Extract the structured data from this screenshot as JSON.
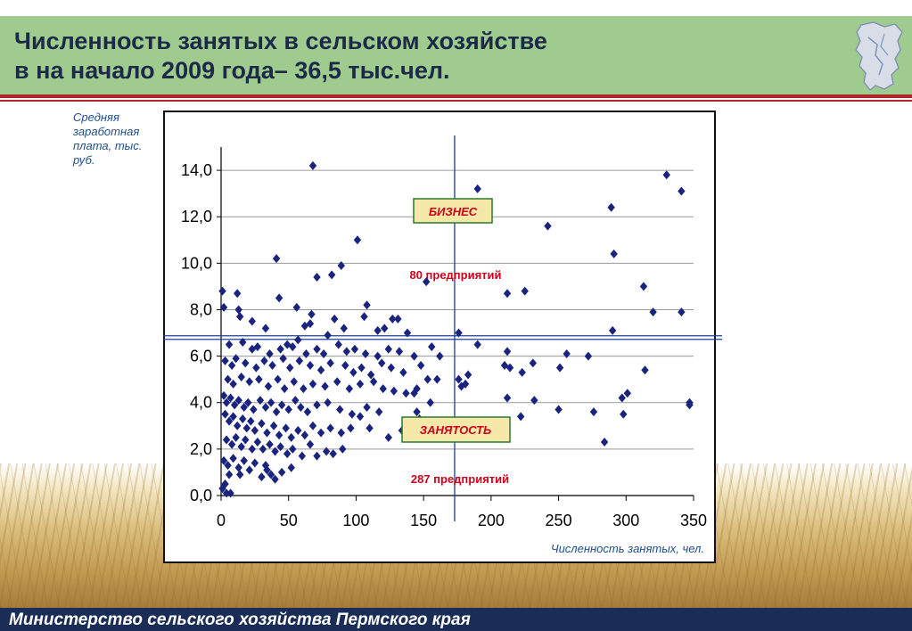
{
  "header": {
    "title_line1": "Численность занятых в сельском хозяйстве",
    "title_line2": "в на начало 2009 года– 36,5 тыс.чел."
  },
  "footer": {
    "text": "Министерство сельского хозяйства Пермского края"
  },
  "colors": {
    "header_bg": "#9fcc8e",
    "accent_line": "#b0262b",
    "footer_bg": "#1b2d56",
    "marker": "#1a237e",
    "annotation_red": "#d0021b",
    "quadrant_box": "#f5e8a8"
  },
  "icons": {
    "region_map": "perm-krai-map-icon"
  },
  "chart_data": {
    "type": "scatter",
    "title": "",
    "ylabel": "Средняя заработная плата, тыс. руб.",
    "xlabel": "Численность занятых, чел.",
    "xlim": [
      0,
      350
    ],
    "ylim": [
      0,
      15
    ],
    "xticks": [
      "0",
      "50",
      "100",
      "150",
      "200",
      "250",
      "300",
      "350"
    ],
    "yticks": [
      "0,0",
      "2,0",
      "4,0",
      "6,0",
      "8,0",
      "10,0",
      "12,0",
      "14,0"
    ],
    "ytick_values": [
      0,
      2,
      4,
      6,
      8,
      10,
      12,
      14
    ],
    "grid": "horizontal",
    "reference_lines": {
      "x": 173,
      "y": 6.8
    },
    "annotations": {
      "business_label": "БИЗНЕС",
      "business_count": "80 предприятий",
      "employment_label": "ЗАНЯТОСТЬ",
      "employment_count": "287 предприятий"
    },
    "points": [
      [
        68,
        14.2
      ],
      [
        190,
        13.2
      ],
      [
        330,
        13.8
      ],
      [
        341,
        13.1
      ],
      [
        289,
        12.4
      ],
      [
        242,
        11.6
      ],
      [
        101,
        11.0
      ],
      [
        41,
        10.2
      ],
      [
        291,
        10.4
      ],
      [
        89,
        9.9
      ],
      [
        82,
        9.5
      ],
      [
        71,
        9.4
      ],
      [
        152,
        9.2
      ],
      [
        1,
        8.8
      ],
      [
        12,
        8.7
      ],
      [
        43,
        8.5
      ],
      [
        108,
        8.2
      ],
      [
        212,
        8.7
      ],
      [
        225,
        8.8
      ],
      [
        313,
        9.0
      ],
      [
        2,
        8.1
      ],
      [
        13,
        8.0
      ],
      [
        14,
        7.7
      ],
      [
        56,
        8.1
      ],
      [
        67,
        7.8
      ],
      [
        84,
        7.6
      ],
      [
        106,
        7.7
      ],
      [
        127,
        7.6
      ],
      [
        131,
        7.6
      ],
      [
        23,
        7.5
      ],
      [
        62,
        7.3
      ],
      [
        66,
        7.4
      ],
      [
        91,
        7.2
      ],
      [
        33,
        7.2
      ],
      [
        320,
        7.9
      ],
      [
        341,
        7.9
      ],
      [
        290,
        7.1
      ],
      [
        176,
        7.0
      ],
      [
        138,
        7.0
      ],
      [
        121,
        7.2
      ],
      [
        116,
        7.1
      ],
      [
        79,
        6.9
      ],
      [
        57,
        6.7
      ],
      [
        6,
        6.5
      ],
      [
        16,
        6.6
      ],
      [
        23,
        6.3
      ],
      [
        27,
        6.4
      ],
      [
        36,
        6.1
      ],
      [
        44,
        6.3
      ],
      [
        49,
        6.5
      ],
      [
        53,
        6.4
      ],
      [
        63,
        6.1
      ],
      [
        71,
        6.3
      ],
      [
        76,
        6.1
      ],
      [
        87,
        6.5
      ],
      [
        93,
        6.2
      ],
      [
        99,
        6.3
      ],
      [
        107,
        6.1
      ],
      [
        116,
        6.0
      ],
      [
        124,
        6.3
      ],
      [
        132,
        6.2
      ],
      [
        143,
        6.0
      ],
      [
        156,
        6.4
      ],
      [
        162,
        6.0
      ],
      [
        190,
        6.5
      ],
      [
        212,
        6.2
      ],
      [
        256,
        6.1
      ],
      [
        272,
        6.0
      ],
      [
        3,
        5.8
      ],
      [
        8,
        5.6
      ],
      [
        11,
        5.9
      ],
      [
        18,
        5.7
      ],
      [
        26,
        5.5
      ],
      [
        32,
        5.8
      ],
      [
        38,
        5.6
      ],
      [
        46,
        5.9
      ],
      [
        51,
        5.5
      ],
      [
        58,
        5.8
      ],
      [
        66,
        5.6
      ],
      [
        74,
        5.4
      ],
      [
        81,
        5.7
      ],
      [
        92,
        5.6
      ],
      [
        98,
        5.3
      ],
      [
        104,
        5.5
      ],
      [
        111,
        5.2
      ],
      [
        119,
        5.7
      ],
      [
        126,
        5.5
      ],
      [
        135,
        5.3
      ],
      [
        148,
        5.6
      ],
      [
        210,
        5.6
      ],
      [
        214,
        5.5
      ],
      [
        223,
        5.3
      ],
      [
        231,
        5.7
      ],
      [
        251,
        5.5
      ],
      [
        314,
        5.4
      ],
      [
        153,
        5.0
      ],
      [
        160,
        5.0
      ],
      [
        176,
        5.0
      ],
      [
        181,
        4.8
      ],
      [
        183,
        5.2
      ],
      [
        5,
        5.0
      ],
      [
        9,
        4.8
      ],
      [
        15,
        5.1
      ],
      [
        21,
        4.9
      ],
      [
        28,
        5.0
      ],
      [
        35,
        4.7
      ],
      [
        42,
        5.0
      ],
      [
        47,
        4.6
      ],
      [
        54,
        4.9
      ],
      [
        61,
        4.6
      ],
      [
        68,
        4.8
      ],
      [
        77,
        4.7
      ],
      [
        86,
        4.9
      ],
      [
        95,
        4.6
      ],
      [
        103,
        4.8
      ],
      [
        113,
        4.9
      ],
      [
        120,
        4.6
      ],
      [
        128,
        4.5
      ],
      [
        137,
        4.4
      ],
      [
        143,
        4.4
      ],
      [
        145,
        4.6
      ],
      [
        155,
        4.0
      ],
      [
        178,
        4.7
      ],
      [
        212,
        4.2
      ],
      [
        232,
        4.1
      ],
      [
        297,
        4.2
      ],
      [
        301,
        4.4
      ],
      [
        347,
        4.0
      ],
      [
        347,
        3.9
      ],
      [
        2,
        4.3
      ],
      [
        4,
        4.0
      ],
      [
        7,
        4.2
      ],
      [
        10,
        3.9
      ],
      [
        13,
        4.1
      ],
      [
        17,
        3.8
      ],
      [
        20,
        4.0
      ],
      [
        24,
        3.7
      ],
      [
        29,
        4.1
      ],
      [
        33,
        3.8
      ],
      [
        37,
        4.0
      ],
      [
        41,
        3.6
      ],
      [
        45,
        3.9
      ],
      [
        50,
        3.7
      ],
      [
        55,
        4.1
      ],
      [
        59,
        3.8
      ],
      [
        64,
        3.6
      ],
      [
        71,
        3.9
      ],
      [
        79,
        4.0
      ],
      [
        88,
        3.7
      ],
      [
        97,
        3.5
      ],
      [
        103,
        3.4
      ],
      [
        108,
        3.8
      ],
      [
        117,
        3.6
      ],
      [
        145,
        3.6
      ],
      [
        147,
        3.3
      ],
      [
        250,
        3.7
      ],
      [
        276,
        3.6
      ],
      [
        298,
        3.5
      ],
      [
        222,
        3.4
      ],
      [
        3,
        3.5
      ],
      [
        6,
        3.2
      ],
      [
        9,
        3.4
      ],
      [
        12,
        3.0
      ],
      [
        16,
        3.3
      ],
      [
        19,
        2.9
      ],
      [
        22,
        3.2
      ],
      [
        25,
        2.8
      ],
      [
        30,
        3.1
      ],
      [
        34,
        2.7
      ],
      [
        39,
        3.0
      ],
      [
        43,
        2.6
      ],
      [
        48,
        2.9
      ],
      [
        52,
        2.5
      ],
      [
        57,
        2.8
      ],
      [
        62,
        2.6
      ],
      [
        68,
        3.0
      ],
      [
        74,
        2.7
      ],
      [
        81,
        2.9
      ],
      [
        89,
        2.7
      ],
      [
        96,
        2.9
      ],
      [
        110,
        2.9
      ],
      [
        134,
        2.8
      ],
      [
        139,
        2.7
      ],
      [
        142,
        2.6
      ],
      [
        124,
        2.5
      ],
      [
        284,
        2.3
      ],
      [
        4,
        2.4
      ],
      [
        8,
        2.2
      ],
      [
        11,
        2.5
      ],
      [
        15,
        2.1
      ],
      [
        18,
        2.4
      ],
      [
        23,
        2.0
      ],
      [
        27,
        2.3
      ],
      [
        31,
        2.0
      ],
      [
        36,
        2.2
      ],
      [
        40,
        1.9
      ],
      [
        44,
        2.1
      ],
      [
        49,
        1.8
      ],
      [
        53,
        2.0
      ],
      [
        60,
        1.7
      ],
      [
        66,
        2.2
      ],
      [
        71,
        1.7
      ],
      [
        78,
        1.9
      ],
      [
        83,
        1.8
      ],
      [
        90,
        2.0
      ],
      [
        2,
        1.5
      ],
      [
        5,
        1.3
      ],
      [
        9,
        1.6
      ],
      [
        13,
        1.2
      ],
      [
        17,
        1.5
      ],
      [
        21,
        1.1
      ],
      [
        25,
        1.4
      ],
      [
        33,
        1.3
      ],
      [
        37,
        0.9
      ],
      [
        40,
        0.7
      ],
      [
        45,
        1.0
      ],
      [
        52,
        1.2
      ],
      [
        3,
        0.5
      ],
      [
        6,
        0.9
      ],
      [
        14,
        0.9
      ],
      [
        1,
        0.3
      ],
      [
        4,
        0.1
      ],
      [
        7,
        0.1
      ],
      [
        30,
        0.8
      ],
      [
        34,
        1.1
      ]
    ]
  }
}
